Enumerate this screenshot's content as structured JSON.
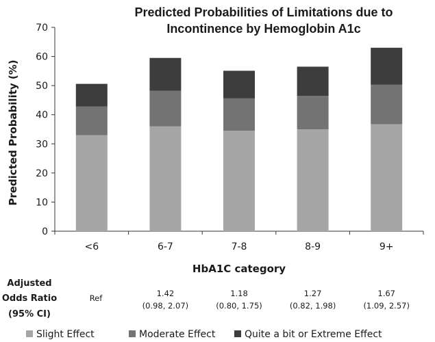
{
  "chart_data": {
    "type": "bar",
    "stacked": true,
    "title": [
      "Predicted Probabilities of Limitations due to",
      "Incontinence by Hemoglobin A1c"
    ],
    "xlabel": "HbA1C category",
    "ylabel": "Predicted Probability (%)",
    "ylim": [
      0,
      70
    ],
    "yticks": [
      "0",
      "10",
      "20",
      "30",
      "40",
      "50",
      "60",
      "70"
    ],
    "grid": false,
    "legend_position": "bottom",
    "categories": [
      "<6",
      "6-7",
      "7-8",
      "8-9",
      "9+"
    ],
    "series": [
      {
        "name": "Slight Effect",
        "color": "#a6a6a6",
        "values": [
          33,
          36,
          34.5,
          35,
          36.7
        ]
      },
      {
        "name": "Moderate Effect",
        "color": "#737373",
        "values": [
          9.8,
          12.2,
          11.1,
          11.5,
          13.6
        ]
      },
      {
        "name": "Quite a bit or Extreme Effect",
        "color": "#3d3d3d",
        "values": [
          7.8,
          11.3,
          9.5,
          10,
          12.7
        ]
      }
    ],
    "odds_ratio": {
      "header": [
        "Adjusted",
        "Odds Ratio",
        "(95% CI)"
      ],
      "rows": [
        {
          "estimate": "Ref",
          "ci": ""
        },
        {
          "estimate": "1.42",
          "ci": "(0.98, 2.07)"
        },
        {
          "estimate": "1.18",
          "ci": "(0.80, 1.75)"
        },
        {
          "estimate": "1.27",
          "ci": "(0.82, 1.98)"
        },
        {
          "estimate": "1.67",
          "ci": "(1.09, 2.57)"
        }
      ]
    }
  }
}
